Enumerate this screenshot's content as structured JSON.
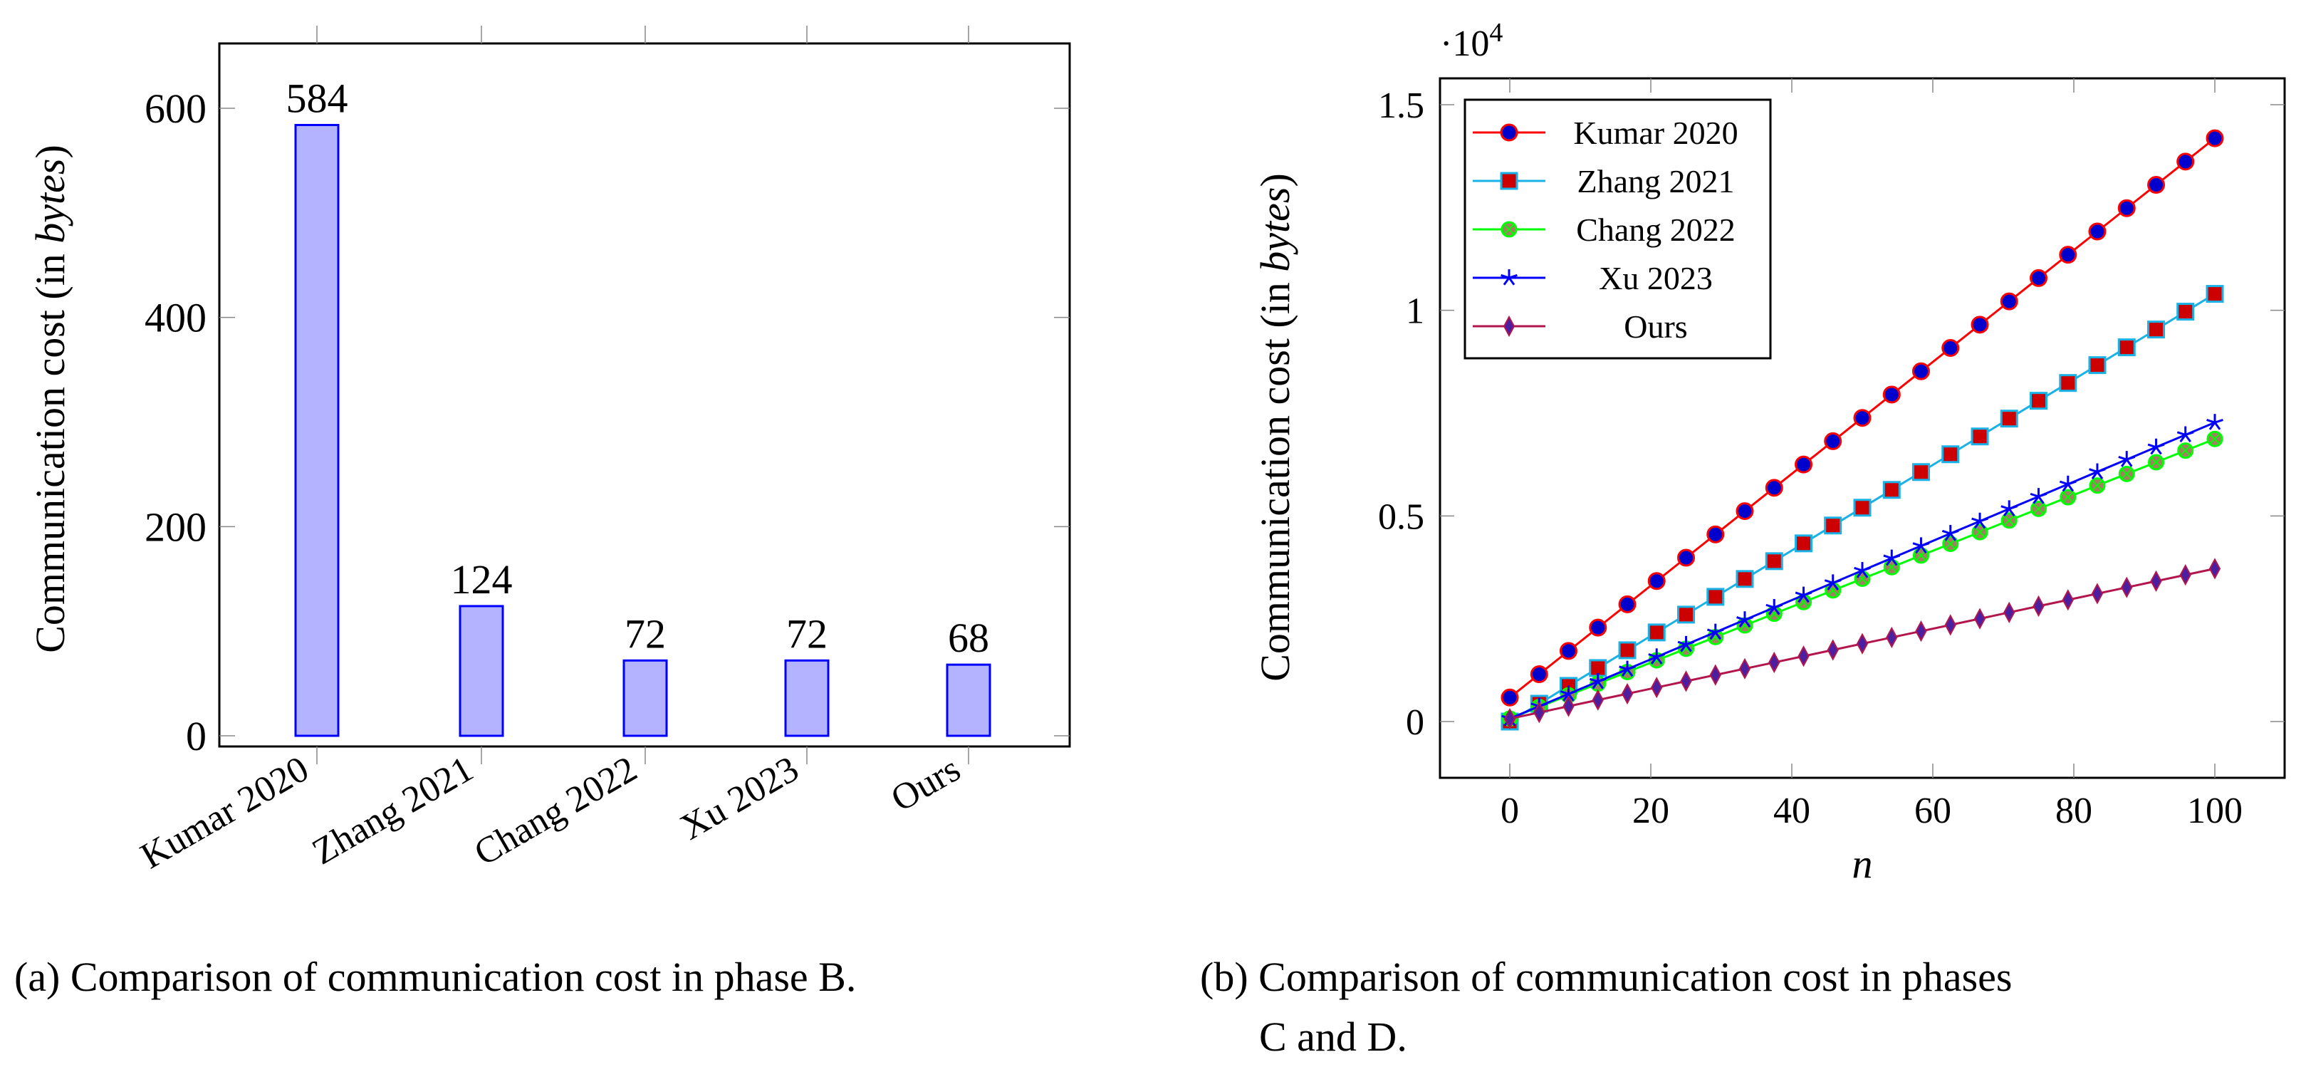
{
  "chart_data": [
    {
      "type": "bar",
      "title": "",
      "xlabel": "",
      "ylabel_prefix": "Communication cost (in ",
      "ylabel_italic": "bytes",
      "ylabel_suffix": ")",
      "categories": [
        "Kumar 2020",
        "Zhang 2021",
        "Chang 2022",
        "Xu 2023",
        "Ours"
      ],
      "values": [
        584,
        124,
        72,
        72,
        68
      ],
      "ylim": [
        0,
        660
      ],
      "yticks": [
        0,
        200,
        400,
        600
      ],
      "bar_fill": "#b3b3ff",
      "bar_stroke": "#0000ff",
      "label_color": "#0000ff",
      "caption": "(a)  Comparison of communication cost in phase B."
    },
    {
      "type": "line",
      "xlabel": "n",
      "ylabel_prefix": "Communication cost (in ",
      "ylabel_italic": "bytes",
      "ylabel_suffix": ")",
      "y_multiplier": "·10",
      "y_multiplier_exp": "4",
      "xlim": [
        -10,
        110
      ],
      "ylim": [
        -1900,
        15900
      ],
      "xticks": [
        0,
        20,
        40,
        60,
        80,
        100
      ],
      "yticks": [
        0,
        5000,
        10000,
        15000
      ],
      "ytick_labels": [
        "0",
        "0.5",
        "1",
        "1.5"
      ],
      "legend_position": "top-left",
      "x": [
        0,
        4.17,
        8.33,
        12.5,
        16.67,
        20.83,
        25,
        29.17,
        33.33,
        37.5,
        41.67,
        45.83,
        50,
        54.17,
        58.33,
        62.5,
        66.67,
        70.83,
        75,
        79.17,
        83.33,
        87.5,
        91.67,
        95.83,
        100
      ],
      "series": [
        {
          "name": "Kumar 2020",
          "line": "#ff0000",
          "fill": "#0000cc",
          "marker": "circle",
          "y": [
            584,
            1151,
            1717,
            2284,
            2851,
            3417,
            3984,
            4551,
            5117,
            5684,
            6251,
            6817,
            7384,
            7951,
            8517,
            9084,
            9651,
            10217,
            10784,
            11351,
            11917,
            12484,
            13051,
            13617,
            14184
          ]
        },
        {
          "name": "Zhang 2021",
          "line": "#1ab2e6",
          "fill": "#cc0000",
          "marker": "square",
          "y": [
            0,
            433,
            867,
            1300,
            1733,
            2167,
            2600,
            3033,
            3467,
            3900,
            4333,
            4767,
            5200,
            5633,
            6067,
            6500,
            6933,
            7367,
            7800,
            8233,
            8667,
            9100,
            9533,
            9967,
            10400
          ]
        },
        {
          "name": "Chang 2022",
          "line": "#00ff00",
          "fill": "#a08060",
          "marker": "otimes",
          "y": [
            72,
            355,
            639,
            922,
            1205,
            1489,
            1772,
            2055,
            2339,
            2622,
            2905,
            3189,
            3472,
            3755,
            4039,
            4322,
            4605,
            4889,
            5172,
            5455,
            5739,
            6022,
            6305,
            6589,
            6872
          ]
        },
        {
          "name": "Xu 2023",
          "line": "#0000ff",
          "fill": "#0000ff",
          "marker": "star",
          "y": [
            72,
            372,
            672,
            972,
            1272,
            1572,
            1872,
            2172,
            2472,
            2772,
            3072,
            3372,
            3672,
            3972,
            4272,
            4572,
            4872,
            5172,
            5472,
            5772,
            6072,
            6372,
            6672,
            6972,
            7272
          ]
        },
        {
          "name": "Ours",
          "line": "#b3164d",
          "fill": "#4b1fa0",
          "marker": "diamond",
          "y": [
            68,
            220,
            372,
            524,
            676,
            828,
            981,
            1133,
            1285,
            1437,
            1589,
            1741,
            1893,
            2045,
            2197,
            2349,
            2501,
            2653,
            2806,
            2958,
            3110,
            3262,
            3414,
            3566,
            3718
          ]
        }
      ],
      "caption_line1": "(b)  Comparison of communication cost in phases",
      "caption_line2": "C and D."
    }
  ]
}
